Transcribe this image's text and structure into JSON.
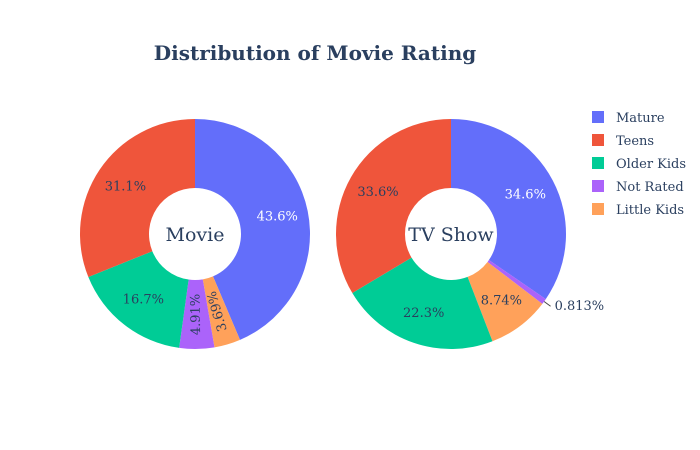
{
  "chart_data": {
    "type": "pie",
    "title": "Distribution of Movie Rating",
    "categories": [
      "Mature",
      "Teens",
      "Older Kids",
      "Not Rated",
      "Little Kids"
    ],
    "colors": {
      "Mature": "#636efa",
      "Teens": "#ef553b",
      "Older Kids": "#00cc96",
      "Not Rated": "#ab63fa",
      "Little Kids": "#ffa15a"
    },
    "legend": {
      "position": "top-right",
      "items": [
        "Mature",
        "Teens",
        "Older Kids",
        "Not Rated",
        "Little Kids"
      ]
    },
    "charts": [
      {
        "name": "Movie",
        "slices": [
          {
            "label": "Mature",
            "value": 43.6,
            "text": "43.6%"
          },
          {
            "label": "Little Kids",
            "value": 3.69,
            "text": "3.69%"
          },
          {
            "label": "Not Rated",
            "value": 4.91,
            "text": "4.91%"
          },
          {
            "label": "Older Kids",
            "value": 16.7,
            "text": "16.7%"
          },
          {
            "label": "Teens",
            "value": 31.1,
            "text": "31.1%"
          }
        ]
      },
      {
        "name": "TV Show",
        "slices": [
          {
            "label": "Mature",
            "value": 34.6,
            "text": "34.6%"
          },
          {
            "label": "Not Rated",
            "value": 0.813,
            "text": "0.813%"
          },
          {
            "label": "Little Kids",
            "value": 8.74,
            "text": "8.74%"
          },
          {
            "label": "Older Kids",
            "value": 22.3,
            "text": "22.3%"
          },
          {
            "label": "Teens",
            "value": 33.6,
            "text": "33.6%"
          }
        ]
      }
    ]
  }
}
